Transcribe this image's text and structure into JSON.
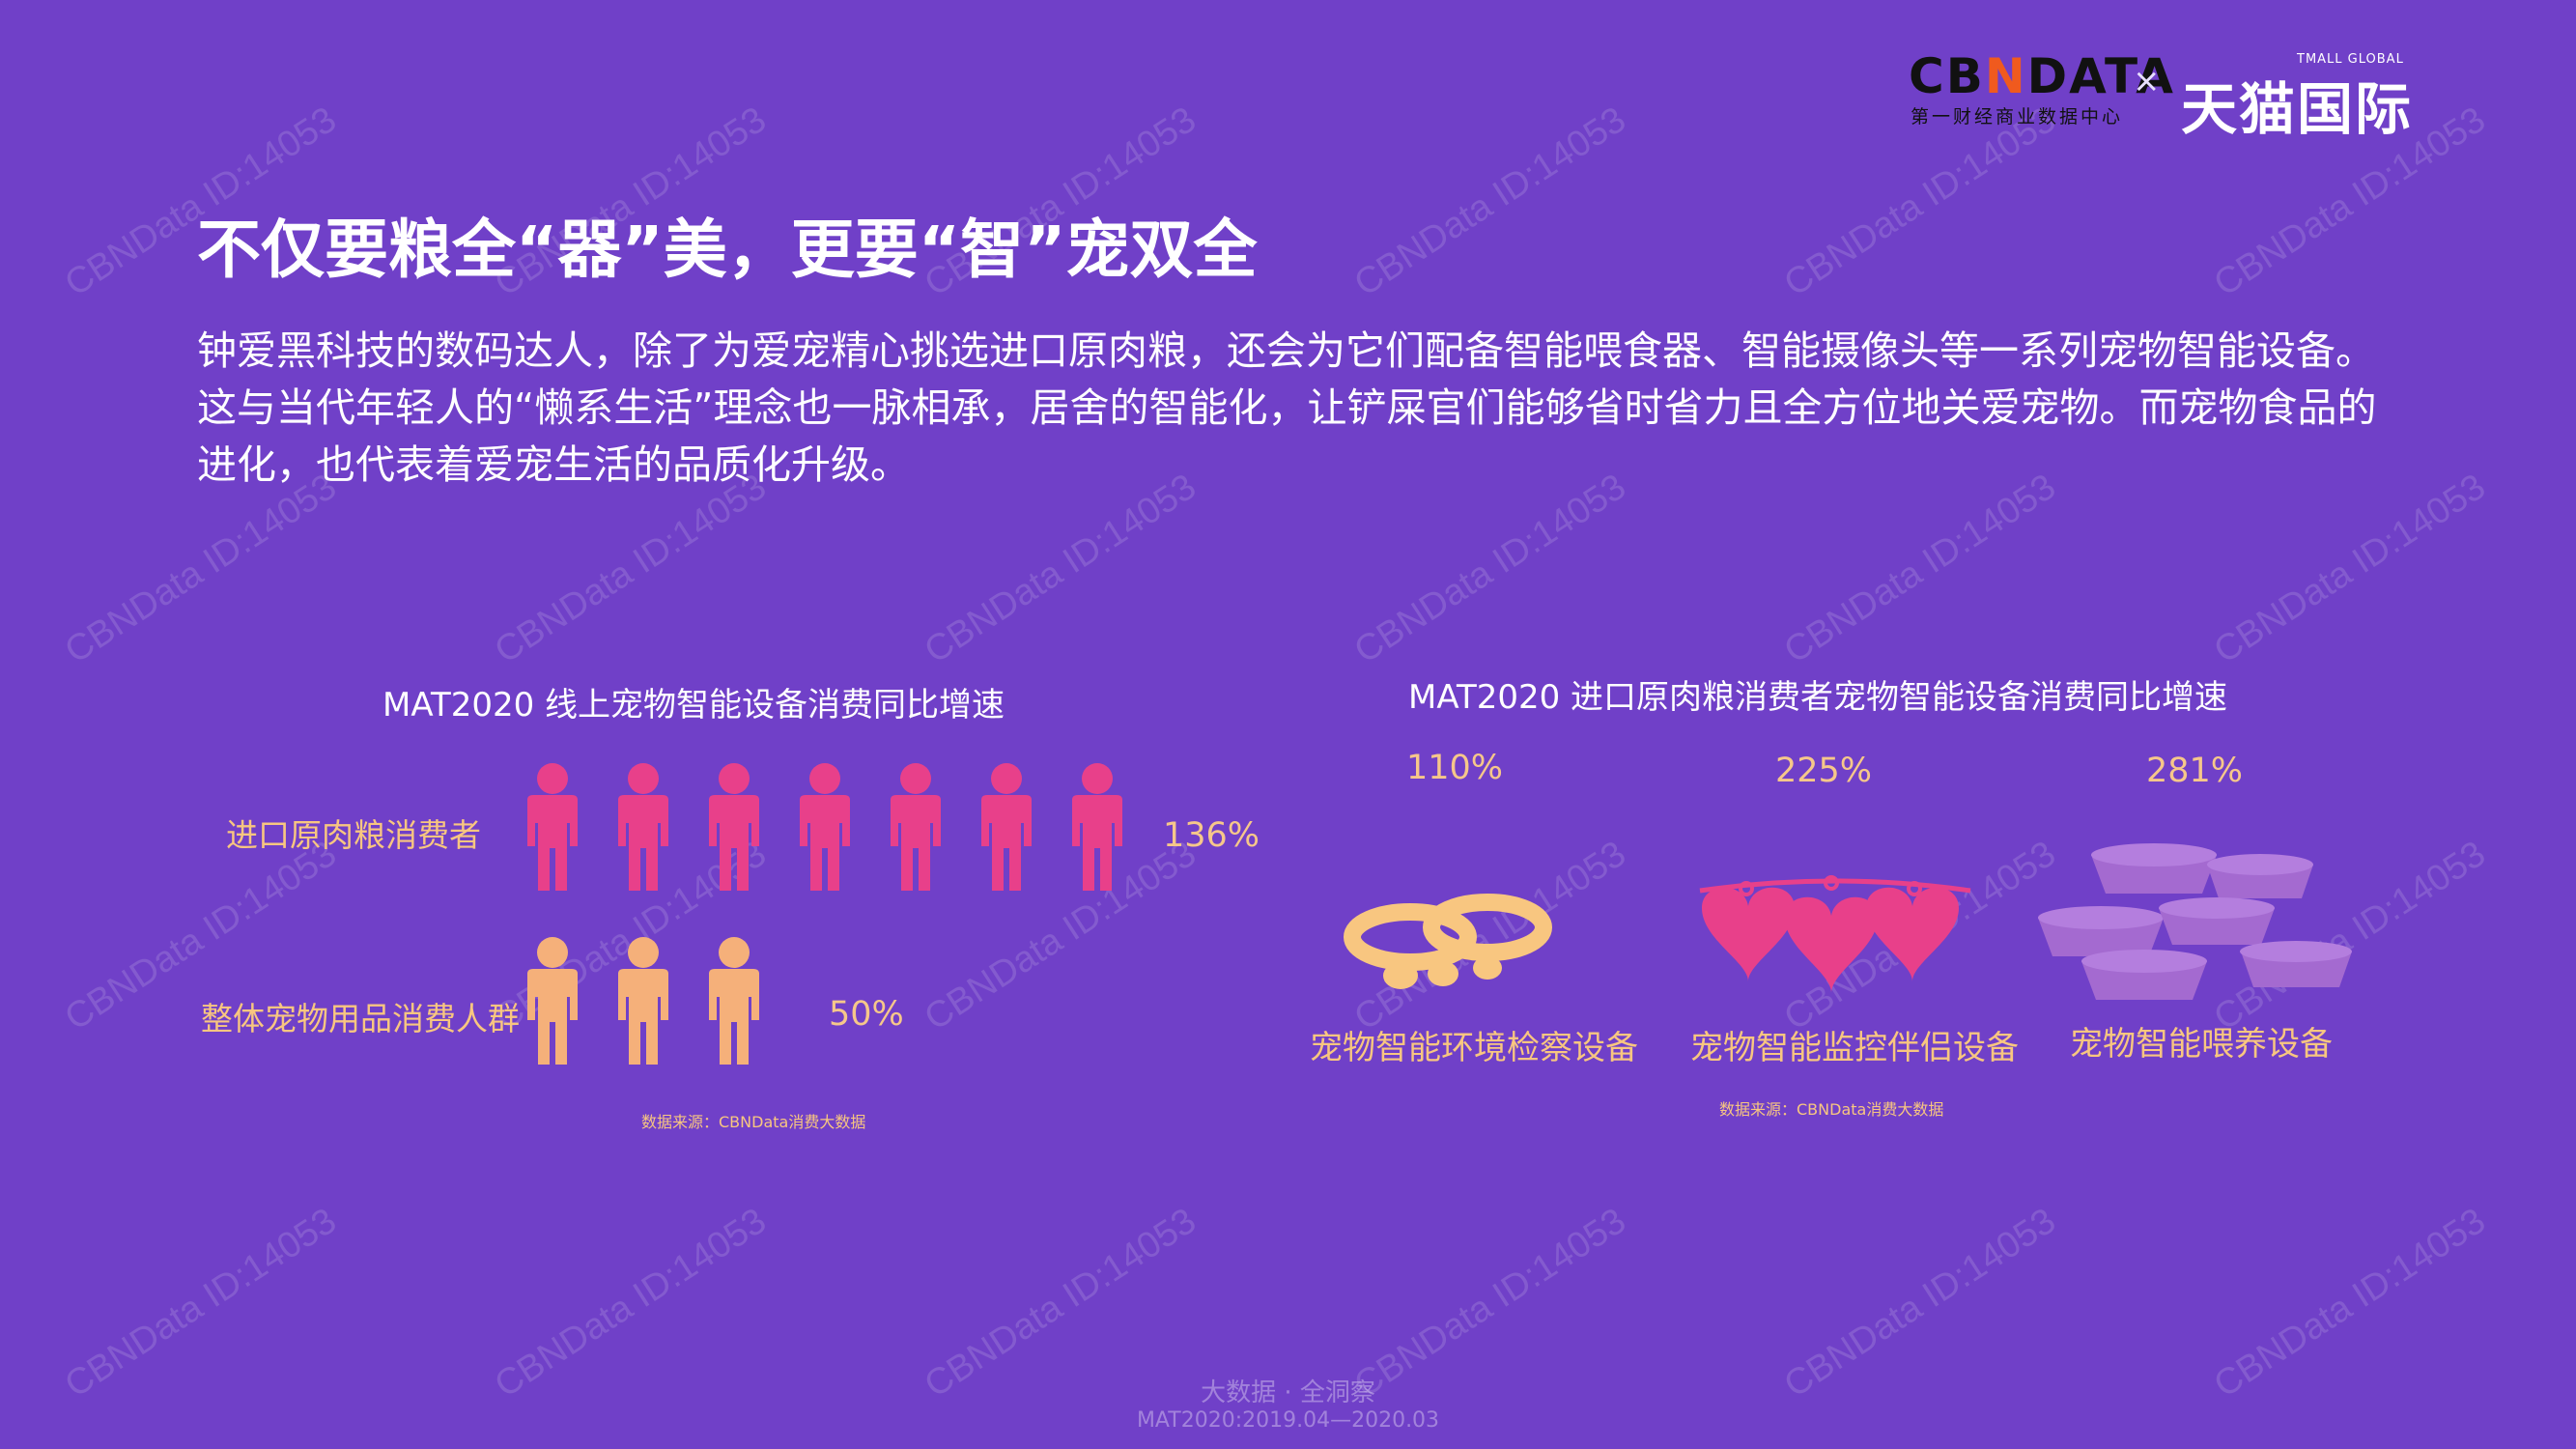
{
  "watermark_text": "CBNData ID:14053",
  "logo": {
    "cbn_pre": "CB",
    "cbn_n": "N",
    "cbn_post": "DATA",
    "cbn_sub": "第一财经商业数据中心",
    "times": "×",
    "tmall_small": "TMALL GLOBAL",
    "tmall": "天猫国际"
  },
  "title": "不仅要粮全“器”美，更要“智”宠双全",
  "paragraph": "钟爱黑科技的数码达人，除了为爱宠精心挑选进口原肉粮，还会为它们配备智能喂食器、智能摄像头等一系列宠物智能设备。这与当代年轻人的“懒系生活”理念也一脉相承，居舍的智能化，让铲屎官们能够省时省力且全方位地关爱宠物。而宠物食品的进化，也代表着爱宠生活的品质化升级。",
  "chart_data": [
    {
      "type": "bar",
      "title": "MAT2020 线上宠物智能设备消费同比增速",
      "categories": [
        "进口原肉粮消费者",
        "整体宠物用品消费人群"
      ],
      "values": [
        136,
        50
      ],
      "value_labels": [
        "136%",
        "50%"
      ],
      "icons_per_row": [
        7,
        3
      ],
      "colors": [
        "#e8408a",
        "#f5b07a"
      ],
      "source": "数据来源：CBNData消费大数据"
    },
    {
      "type": "bar",
      "title": "MAT2020 进口原肉粮消费者宠物智能设备消费同比增速",
      "categories": [
        "宠物智能环境检察设备",
        "宠物智能监控伴侣设备",
        "宠物智能喂养设备"
      ],
      "values": [
        110,
        225,
        281
      ],
      "value_labels": [
        "110%",
        "225%",
        "281%"
      ],
      "colors": [
        "#f8c680",
        "#e8408a",
        "#a46ad0"
      ],
      "source": "数据来源：CBNData消费大数据"
    }
  ],
  "footer": {
    "line1": "大数据 · 全洞察",
    "line2": "MAT2020:2019.04—2020.03"
  }
}
